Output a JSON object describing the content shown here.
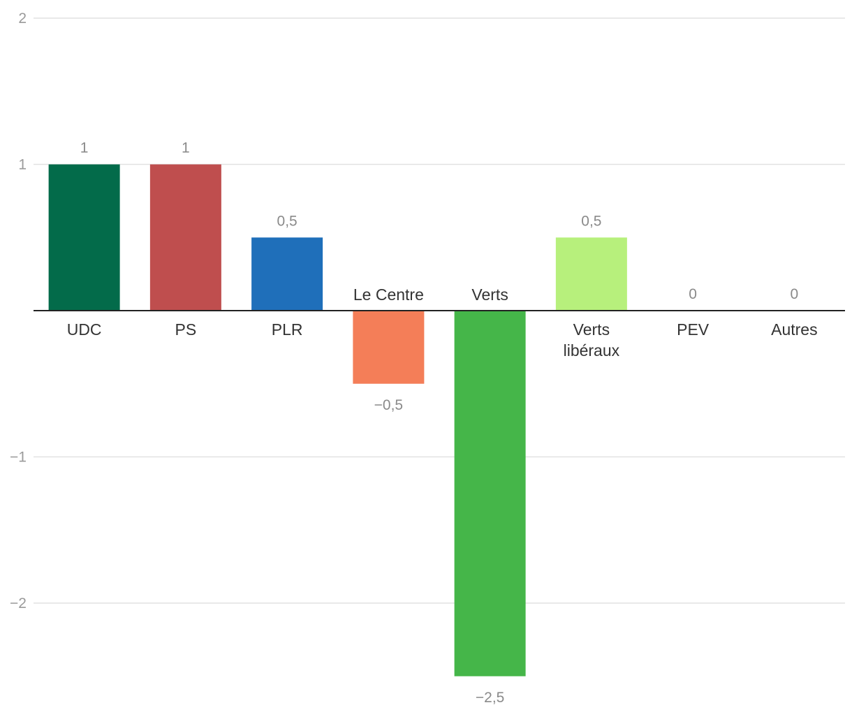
{
  "chart_data": {
    "type": "bar",
    "title": "",
    "xlabel": "",
    "ylabel": "",
    "ylim": [
      -2.5,
      2
    ],
    "yticks": [
      {
        "value": 2,
        "label": "2"
      },
      {
        "value": 1,
        "label": "1"
      },
      {
        "value": -1,
        "label": "−1"
      },
      {
        "value": -2,
        "label": "−2"
      }
    ],
    "grid": true,
    "legend": "none",
    "categories": [
      {
        "name": "UDC",
        "lines": [
          "UDC"
        ]
      },
      {
        "name": "PS",
        "lines": [
          "PS"
        ]
      },
      {
        "name": "PLR",
        "lines": [
          "PLR"
        ]
      },
      {
        "name": "Le Centre",
        "lines": [
          "Le Centre"
        ]
      },
      {
        "name": "Verts",
        "lines": [
          "Verts"
        ]
      },
      {
        "name": "Verts libéraux",
        "lines": [
          "Verts",
          "libéraux"
        ]
      },
      {
        "name": "PEV",
        "lines": [
          "PEV"
        ]
      },
      {
        "name": "Autres",
        "lines": [
          "Autres"
        ]
      }
    ],
    "values": [
      1,
      1,
      0.5,
      -0.5,
      -2.5,
      0.5,
      0,
      0
    ],
    "value_labels": [
      "1",
      "1",
      "0,5",
      "−0,5",
      "−2,5",
      "0,5",
      "0",
      "0"
    ],
    "colors": [
      "#036b4a",
      "#bf4e4e",
      "#1f6fba",
      "#f47e58",
      "#45b649",
      "#b7f07c",
      "#999999",
      "#999999"
    ]
  }
}
